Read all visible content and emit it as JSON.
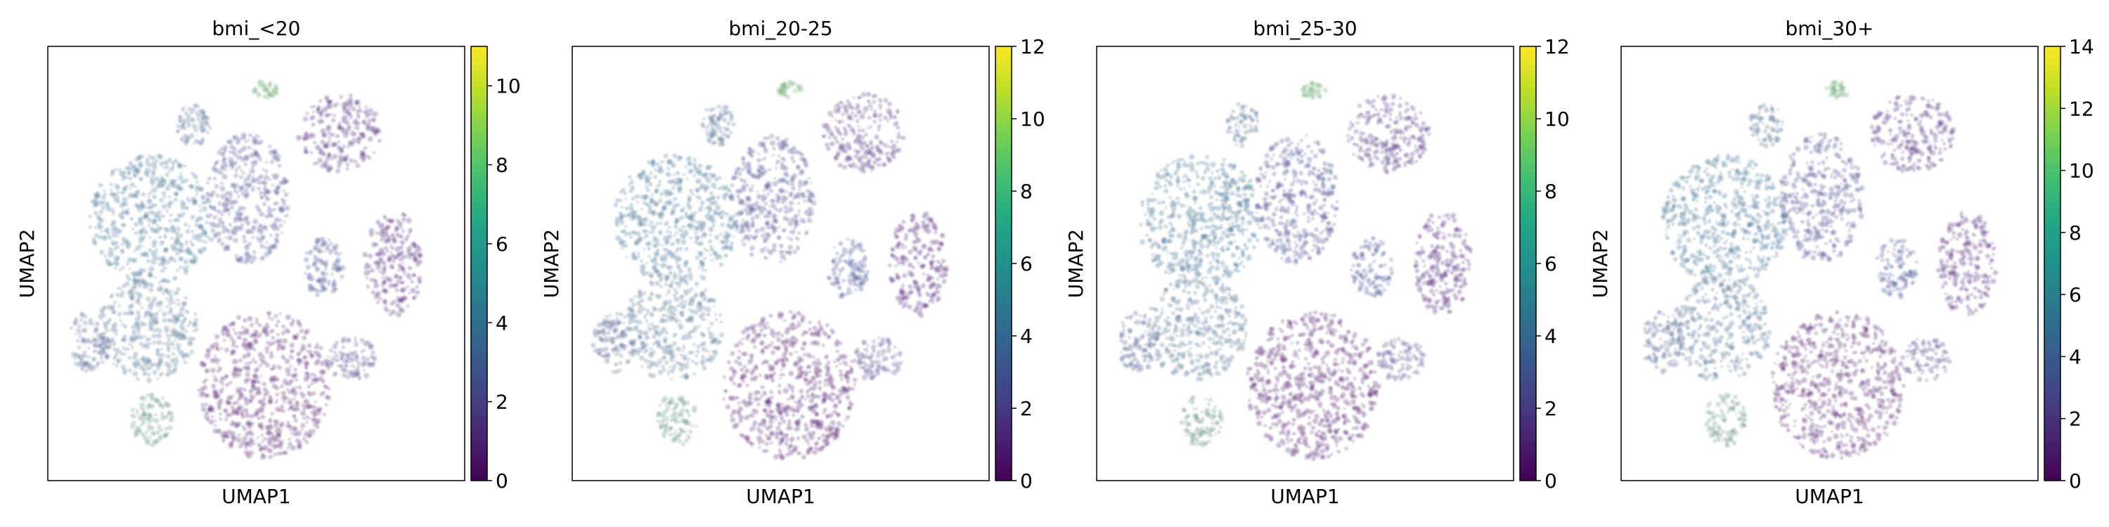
{
  "chart_data": [
    {
      "type": "scatter",
      "title": "bmi_<20",
      "xlabel": "UMAP1",
      "ylabel": "UMAP2",
      "colorbar": {
        "colormap": "viridis",
        "range": [
          0,
          11
        ],
        "ticks": [
          0,
          2,
          4,
          6,
          8,
          10
        ]
      },
      "grid": false
    },
    {
      "type": "scatter",
      "title": "bmi_20-25",
      "xlabel": "UMAP1",
      "ylabel": "UMAP2",
      "colorbar": {
        "colormap": "viridis",
        "range": [
          0,
          12
        ],
        "ticks": [
          0,
          2,
          4,
          6,
          8,
          10,
          12
        ]
      },
      "grid": false
    },
    {
      "type": "scatter",
      "title": "bmi_25-30",
      "xlabel": "UMAP1",
      "ylabel": "UMAP2",
      "colorbar": {
        "colormap": "viridis",
        "range": [
          0,
          12
        ],
        "ticks": [
          0,
          2,
          4,
          6,
          8,
          10,
          12
        ]
      },
      "grid": false
    },
    {
      "type": "scatter",
      "title": "bmi_30+",
      "xlabel": "UMAP1",
      "ylabel": "UMAP2",
      "colorbar": {
        "colormap": "viridis",
        "range": [
          0,
          14
        ],
        "ticks": [
          0,
          2,
          4,
          6,
          8,
          10,
          12,
          14
        ]
      },
      "grid": false
    }
  ]
}
